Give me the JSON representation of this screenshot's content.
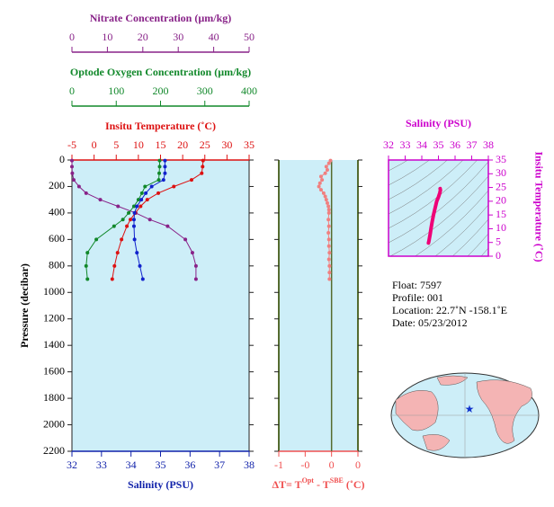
{
  "chart_data": [
    {
      "type": "profile",
      "ylabel": "Pressure (decibar)",
      "ylim": [
        0,
        2200
      ],
      "yticks": [
        0,
        200,
        400,
        600,
        800,
        1000,
        1200,
        1400,
        1600,
        1800,
        2000,
        2200
      ],
      "background": "#cdeef8",
      "axes": [
        {
          "side": "top",
          "title": [
            "Nitrate Concentration (µm/kg)"
          ],
          "color": "#882288",
          "lim": [
            0,
            50
          ],
          "ticks": [
            0,
            10,
            20,
            30,
            40,
            50
          ]
        },
        {
          "side": "top",
          "title": [
            "Optode Oxygen Concentration (µm/kg)"
          ],
          "color": "#11882a",
          "lim": [
            0,
            400
          ],
          "ticks": [
            0,
            100,
            200,
            300,
            400
          ]
        },
        {
          "side": "top",
          "title": [
            "Insitu Temperature (˚C)"
          ],
          "color": "#dd1111",
          "lim": [
            -5,
            35
          ],
          "ticks": [
            -5,
            0,
            5,
            10,
            15,
            20,
            25,
            30,
            35
          ]
        },
        {
          "side": "bottom",
          "title": [
            "Salinity (PSU)"
          ],
          "color": "#1122aa",
          "lim": [
            32,
            38
          ],
          "ticks": [
            32,
            33,
            34,
            35,
            36,
            37,
            38
          ]
        }
      ],
      "series": [
        {
          "axis": 0,
          "color": "#882288",
          "pressure": [
            4,
            50,
            100,
            150,
            200,
            250,
            300,
            350,
            400,
            450,
            500,
            600,
            700,
            800,
            900
          ],
          "values": [
            0,
            0,
            0.1,
            0.5,
            2,
            4,
            8,
            13,
            18,
            22,
            27,
            32,
            34,
            35,
            35
          ]
        },
        {
          "axis": 1,
          "color": "#11882a",
          "pressure": [
            4,
            50,
            100,
            150,
            200,
            250,
            300,
            350,
            400,
            450,
            500,
            600,
            700,
            800,
            900
          ],
          "values": [
            198,
            198,
            197,
            196,
            165,
            158,
            150,
            140,
            128,
            115,
            95,
            55,
            35,
            32,
            35
          ]
        },
        {
          "axis": 2,
          "color": "#dd1111",
          "pressure": [
            4,
            50,
            100,
            150,
            200,
            250,
            300,
            350,
            400,
            450,
            500,
            600,
            700,
            800,
            900
          ],
          "values": [
            24.6,
            24.5,
            24.3,
            22,
            18,
            14.5,
            12,
            10.5,
            9.3,
            8.2,
            7.4,
            6.2,
            5.3,
            4.6,
            4.1
          ]
        },
        {
          "axis": 3,
          "color": "#1122cc",
          "pressure": [
            4,
            50,
            100,
            150,
            200,
            250,
            300,
            350,
            400,
            450,
            500,
            600,
            700,
            800,
            900
          ],
          "values": [
            35.15,
            35.15,
            35.15,
            35.1,
            34.7,
            34.5,
            34.35,
            34.2,
            34.12,
            34.1,
            34.1,
            34.12,
            34.2,
            34.3,
            34.4
          ]
        }
      ]
    },
    {
      "type": "profile",
      "ylim": [
        0,
        2200
      ],
      "yticks": [
        0,
        200,
        400,
        600,
        800,
        1000,
        1200,
        1400,
        1600,
        1800,
        2000,
        2200
      ],
      "background": "#cdeef8",
      "zero_line": true,
      "axes": [
        {
          "side": "bottom",
          "title": [
            "ΔT= T",
            "Opt",
            " - T",
            "SBE",
            " (˚C)"
          ],
          "color": "#f05050",
          "lim": [
            -1,
            0.5
          ],
          "ticks": [
            -1,
            {
              "value": -0.5,
              "label": "-0"
            },
            0,
            {
              "value": 0.5,
              "label": "0"
            }
          ]
        }
      ],
      "series": [
        {
          "axis": 0,
          "color": "#f08080",
          "pressure": [
            4,
            25,
            50,
            75,
            100,
            125,
            150,
            175,
            200,
            225,
            250,
            275,
            300,
            325,
            350,
            375,
            400,
            450,
            500,
            550,
            600,
            650,
            700,
            750,
            800,
            850,
            900
          ],
          "values": [
            -0.02,
            -0.05,
            -0.1,
            -0.08,
            -0.12,
            -0.2,
            -0.18,
            -0.22,
            -0.24,
            -0.2,
            -0.15,
            -0.12,
            -0.1,
            -0.08,
            -0.06,
            -0.05,
            -0.05,
            -0.06,
            -0.05,
            -0.06,
            -0.05,
            -0.05,
            -0.04,
            -0.05,
            -0.04,
            -0.04,
            -0.04
          ]
        }
      ]
    },
    {
      "type": "ts",
      "title": [
        "Salinity (PSU)"
      ],
      "ylabel": "Insitu Temperature (˚C)",
      "color": "#cc00cc",
      "xlim": [
        32,
        38
      ],
      "xticks": [
        32,
        33,
        34,
        35,
        36,
        37,
        38
      ],
      "ylim": [
        0,
        35
      ],
      "yticks": [
        0,
        5,
        10,
        15,
        20,
        25,
        30,
        35
      ],
      "background": "#cdeef8",
      "series": [
        {
          "color": "#ee0077",
          "x": [
            35.1,
            35.12,
            35.08,
            35.0,
            34.9,
            34.8,
            34.7,
            34.62,
            34.55,
            34.5,
            34.45,
            34.42,
            34.4
          ],
          "values": [
            24.6,
            24.0,
            23.0,
            21.5,
            20.0,
            17.5,
            15.0,
            12.5,
            10.0,
            8.0,
            6.2,
            5.3,
            4.8
          ]
        }
      ]
    }
  ],
  "info": [
    "Float:  7597",
    "Profile:  001",
    "Location:  22.7˚N  -158.1˚E",
    "Date:  05/23/2012"
  ]
}
